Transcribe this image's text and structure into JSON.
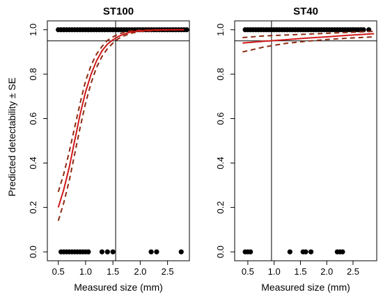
{
  "colors": {
    "fit": "#d01818",
    "se": "#8b2a12",
    "points": "#000000"
  },
  "shared": {
    "ylabel": "Predicted detectability ± SE",
    "xlabel": "Measured size (mm)"
  },
  "chart_data": [
    {
      "type": "scatter",
      "title": "ST100",
      "xlabel": "Measured size (mm)",
      "ylabel": "Predicted detectability ± SE",
      "xlim": [
        0.3,
        2.9
      ],
      "ylim": [
        -0.04,
        1.04
      ],
      "xticks": [
        0.5,
        1.0,
        1.5,
        2.0,
        2.5
      ],
      "xtick_labels": [
        "0.5",
        "1.0",
        "1.5",
        "2.0",
        "2.5"
      ],
      "yticks": [
        0.0,
        0.2,
        0.4,
        0.6,
        0.8,
        1.0
      ],
      "ytick_labels": [
        "0.0",
        "0.2",
        "0.4",
        "0.6",
        "0.8",
        "1.0"
      ],
      "hline": 0.95,
      "vline": 1.55,
      "points": {
        "detected_y1": [
          0.5,
          0.55,
          0.6,
          0.65,
          0.7,
          0.75,
          0.8,
          0.85,
          0.9,
          0.95,
          1.0,
          1.05,
          1.1,
          1.15,
          1.2,
          1.25,
          1.3,
          1.35,
          1.4,
          1.45,
          1.5,
          1.55,
          1.6,
          1.65,
          1.7,
          1.75,
          1.8,
          1.85,
          1.9,
          1.95,
          2.0,
          2.05,
          2.1,
          2.15,
          2.2,
          2.25,
          2.3,
          2.35,
          2.4,
          2.45,
          2.5,
          2.55,
          2.6,
          2.65,
          2.7,
          2.75,
          2.8,
          2.85
        ],
        "missed_y0": [
          0.55,
          0.6,
          0.65,
          0.7,
          0.75,
          0.8,
          0.85,
          0.9,
          0.95,
          1.0,
          1.05,
          1.3,
          1.4,
          1.5,
          2.2,
          2.3,
          2.75
        ]
      },
      "fit": {
        "x": [
          0.5,
          0.6,
          0.7,
          0.8,
          0.9,
          1.0,
          1.1,
          1.2,
          1.3,
          1.4,
          1.5,
          1.6,
          1.7,
          1.8,
          1.9,
          2.0,
          2.2,
          2.4,
          2.6,
          2.8
        ],
        "y": [
          0.2,
          0.28,
          0.38,
          0.5,
          0.62,
          0.72,
          0.8,
          0.86,
          0.905,
          0.935,
          0.955,
          0.97,
          0.98,
          0.988,
          0.992,
          0.995,
          0.998,
          0.999,
          1.0,
          1.0
        ],
        "lower": [
          0.14,
          0.22,
          0.32,
          0.44,
          0.56,
          0.67,
          0.76,
          0.83,
          0.88,
          0.915,
          0.94,
          0.96,
          0.972,
          0.982,
          0.988,
          0.992,
          0.996,
          0.998,
          0.999,
          1.0
        ],
        "upper": [
          0.27,
          0.35,
          0.45,
          0.56,
          0.67,
          0.77,
          0.84,
          0.89,
          0.925,
          0.952,
          0.968,
          0.98,
          0.988,
          0.994,
          0.997,
          0.998,
          0.999,
          1.0,
          1.0,
          1.0
        ]
      }
    },
    {
      "type": "scatter",
      "title": "ST40",
      "xlabel": "Measured size (mm)",
      "ylabel": "",
      "xlim": [
        0.25,
        2.95
      ],
      "ylim": [
        -0.04,
        1.04
      ],
      "xticks": [
        0.5,
        1.0,
        1.5,
        2.0,
        2.5
      ],
      "xtick_labels": [
        "0.5",
        "1.0",
        "1.5",
        "2.0",
        "2.5"
      ],
      "yticks": [
        0.0,
        0.2,
        0.4,
        0.6,
        0.8,
        1.0
      ],
      "ytick_labels": [
        "0.0",
        "0.2",
        "0.4",
        "0.6",
        "0.8",
        "1.0"
      ],
      "hline": 0.95,
      "vline": 0.95,
      "points": {
        "detected_y1": [
          0.45,
          0.5,
          0.55,
          0.6,
          0.65,
          0.7,
          0.75,
          0.8,
          0.85,
          0.9,
          0.95,
          1.0,
          1.05,
          1.1,
          1.15,
          1.2,
          1.25,
          1.3,
          1.35,
          1.4,
          1.45,
          1.5,
          1.55,
          1.6,
          1.65,
          1.7,
          1.75,
          1.8,
          1.85,
          1.9,
          1.95,
          2.0,
          2.05,
          2.1,
          2.15,
          2.2,
          2.25,
          2.3,
          2.35,
          2.4,
          2.45,
          2.5,
          2.55,
          2.6,
          2.65,
          2.7,
          2.8
        ],
        "missed_y0": [
          0.45,
          0.5,
          0.55,
          1.3,
          1.55,
          1.6,
          1.7,
          2.2,
          2.25,
          2.3
        ]
      },
      "fit": {
        "x": [
          0.4,
          0.8,
          1.2,
          1.6,
          2.0,
          2.4,
          2.9
        ],
        "y": [
          0.94,
          0.948,
          0.955,
          0.962,
          0.968,
          0.975,
          0.982
        ],
        "lower": [
          0.9,
          0.922,
          0.938,
          0.948,
          0.956,
          0.962,
          0.968
        ],
        "upper": [
          0.965,
          0.972,
          0.976,
          0.98,
          0.984,
          0.988,
          0.993
        ]
      }
    }
  ]
}
